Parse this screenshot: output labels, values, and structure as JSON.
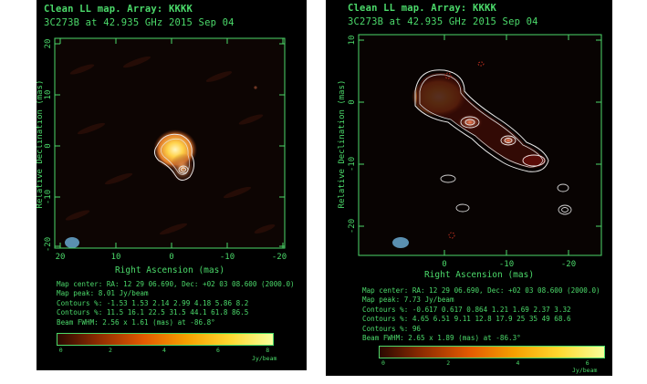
{
  "panels": [
    {
      "title": "Clean LL map.  Array:  KKKK",
      "subtitle": "3C273B at 42.935 GHz 2015 Sep 04",
      "xlabel": "Right Ascension   (mas)",
      "ylabel": "Relative Declination (mas)",
      "xticks": [
        "20",
        "10",
        "0",
        "-10",
        "-20"
      ],
      "yticks": [
        "20",
        "10",
        "0",
        "-10",
        "-20"
      ],
      "info": [
        "Map center:  RA: 12 29 06.690,  Dec: +02 03 08.600 (2000.0)",
        "Map peak: 8.01 Jy/beam",
        "Contours %: -1.53 1.53 2.14 2.99 4.18 5.86 8.2",
        "Contours %: 11.5 16.1 22.5 31.5 44.1 61.8 86.5",
        "Beam FWHM: 2.56 x 1.61 (mas) at -86.8°"
      ],
      "colorbar_ticks": [
        "0",
        "2",
        "4",
        "6",
        "8"
      ],
      "colorbar_unit": "Jy/beam"
    },
    {
      "title": "Clean LL map.  Array:  KKKK",
      "subtitle": "3C273B at 42.935 GHz 2015 Sep 04",
      "xlabel": "Right Ascension   (mas)",
      "ylabel": "Relative Declination (mas)",
      "xticks": [
        "0",
        "-10",
        "-20"
      ],
      "yticks": [
        "10",
        "0",
        "-10",
        "-20"
      ],
      "info": [
        "Map center:  RA: 12 29 06.690,  Dec: +02 03 08.600 (2000.0)",
        "Map peak: 7.73 Jy/beam",
        "Contours %: -0.617 0.617 0.864 1.21 1.69 2.37 3.32",
        "Contours %: 4.65 6.51 9.11 12.8 17.9 25 35 49 68.6",
        "Contours %: 96",
        "Beam FWHM: 2.65 x 1.89 (mas) at -86.3°"
      ],
      "colorbar_ticks": [
        "0",
        "2",
        "4",
        "6"
      ],
      "colorbar_unit": "Jy/beam"
    }
  ],
  "colors": {
    "frame": "#4bd96a",
    "background": "#000000",
    "page": "#ffffff",
    "beam": "#5a8fb0",
    "contour": "#e8e8e8",
    "emission_core": "#ffd24a",
    "emission_mid": "#e07a2a"
  }
}
